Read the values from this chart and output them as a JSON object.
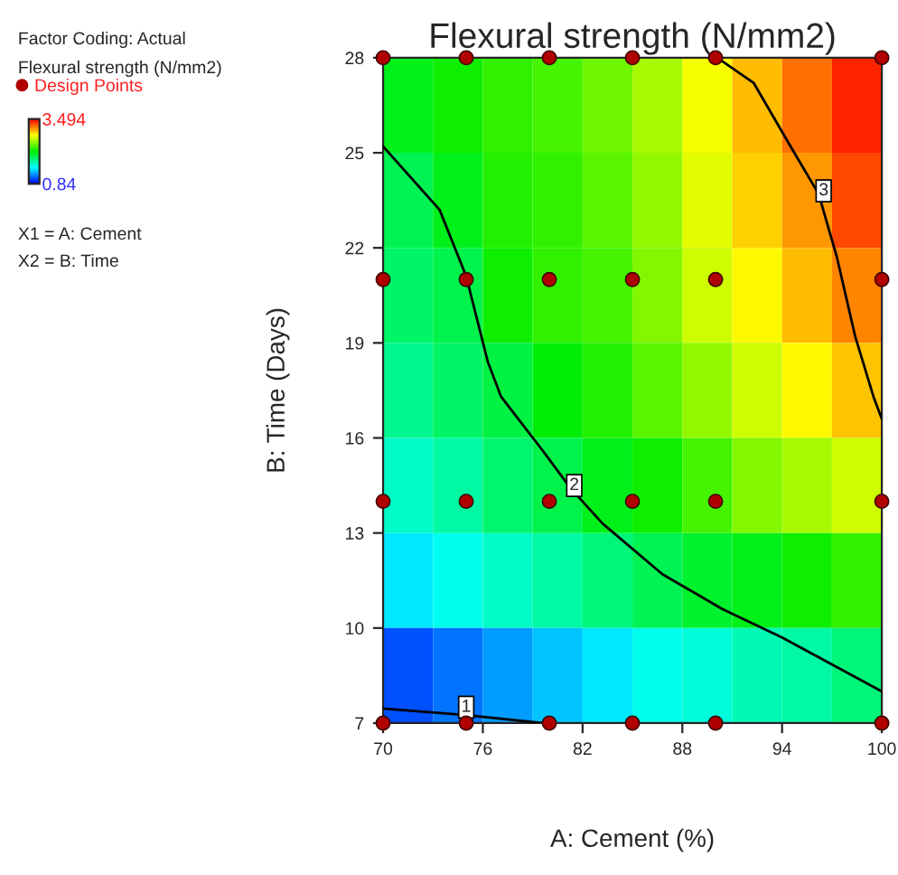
{
  "chart_data": {
    "type": "heatmap",
    "title": "Flexural strength (N/mm2)",
    "xlabel": "A: Cement (%)",
    "ylabel": "B: Time (Days)",
    "clabel": "Flexural strength (N/mm2)",
    "xlim": [
      70,
      100
    ],
    "ylim": [
      7,
      28
    ],
    "xticks": [
      70,
      76,
      82,
      88,
      94,
      100
    ],
    "yticks": [
      7,
      10,
      13,
      16,
      19,
      22,
      25,
      28
    ],
    "clim": [
      0.84,
      3.494
    ],
    "cticks": [
      0.84,
      3.494
    ],
    "grid": false,
    "legend": "left",
    "cells": [
      [
        2.1,
        2.2,
        2.3,
        2.35,
        2.45,
        2.6,
        2.8,
        3.0,
        3.2,
        3.4
      ],
      [
        1.95,
        2.1,
        2.25,
        2.3,
        2.4,
        2.55,
        2.75,
        2.95,
        3.1,
        3.3
      ],
      [
        1.9,
        1.98,
        2.2,
        2.3,
        2.35,
        2.5,
        2.7,
        2.85,
        3.0,
        3.15
      ],
      [
        1.8,
        1.9,
        2.0,
        2.15,
        2.25,
        2.4,
        2.55,
        2.7,
        2.85,
        2.98
      ],
      [
        1.65,
        1.75,
        1.88,
        1.98,
        2.1,
        2.2,
        2.35,
        2.5,
        2.6,
        2.7
      ],
      [
        1.45,
        1.55,
        1.65,
        1.75,
        1.85,
        1.95,
        2.05,
        2.1,
        2.2,
        2.3
      ],
      [
        1.05,
        1.15,
        1.25,
        1.35,
        1.45,
        1.55,
        1.6,
        1.7,
        1.75,
        1.85
      ]
    ],
    "series": [
      {
        "type": "line",
        "color": "#000000",
        "x": [
          70,
          75,
          79.6
        ],
        "values": [
          7.46,
          7.25,
          7
        ]
      },
      {
        "type": "line",
        "color": "#000000",
        "x": [
          70,
          73.4,
          75,
          76.3,
          77.1,
          79.6,
          81.3,
          83.2,
          86.8,
          90.4,
          94,
          100
        ],
        "values": [
          25.2,
          23.2,
          21.1,
          18.4,
          17.3,
          15.6,
          14.4,
          13.3,
          11.7,
          10.6,
          9.7,
          8.0
        ]
      },
      {
        "type": "line",
        "color": "#000000",
        "x": [
          90.1,
          92.3,
          94.4,
          96.2,
          97.3,
          98.4,
          99.5,
          100
        ],
        "values": [
          28,
          27.2,
          25.3,
          23.7,
          21.7,
          19.2,
          17.3,
          16.6
        ]
      },
      {
        "type": "scatter",
        "name": "Design Points",
        "color": "#b00000",
        "marker": "circle",
        "x": [
          70,
          75,
          80,
          85,
          90,
          100,
          70,
          75,
          80,
          85,
          90,
          100,
          70,
          75,
          80,
          85,
          90,
          100,
          70,
          75,
          80,
          85,
          90,
          100
        ],
        "values": [
          28,
          28,
          28,
          28,
          28,
          28,
          21,
          21,
          21,
          21,
          21,
          21,
          14,
          14,
          14,
          14,
          14,
          14,
          7,
          7,
          7,
          7,
          7,
          7
        ]
      }
    ],
    "annotations": [
      "Factor Coding: Actual",
      "X1 = A: Cement",
      "X2 = B: Time",
      {
        "text": "1",
        "x": 75,
        "y": 7.5
      },
      {
        "text": "2",
        "x": 81.5,
        "y": 14.5
      },
      {
        "text": "3",
        "x": 96.5,
        "y": 23.8
      }
    ]
  }
}
